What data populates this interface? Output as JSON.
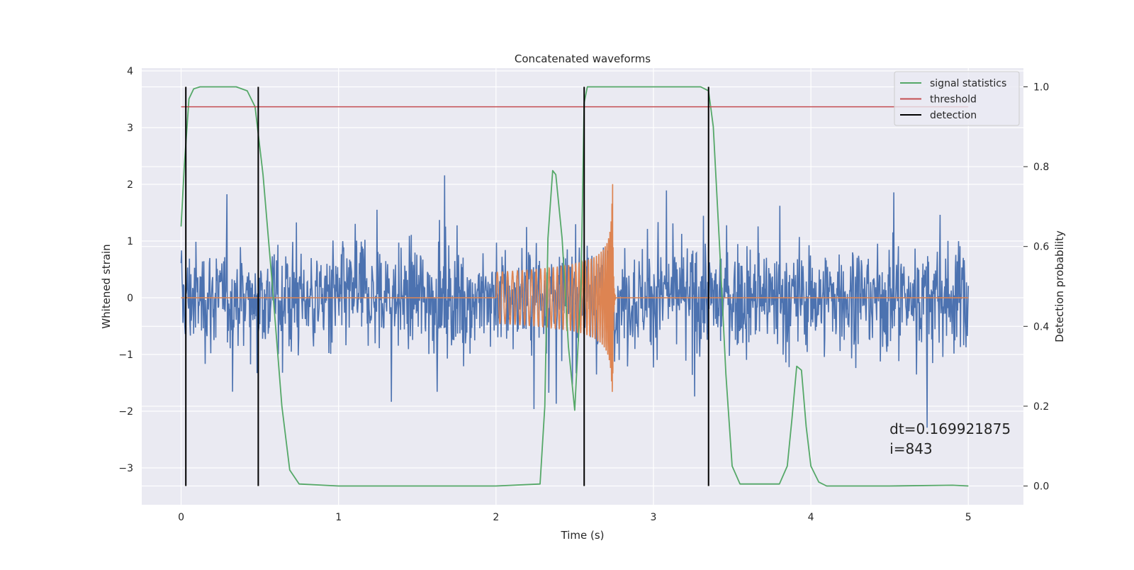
{
  "chart_data": {
    "type": "line",
    "title": "Concatenated waveforms",
    "xlabel": "Time (s)",
    "ylabel": "Whitened strain",
    "y2label": "Detection probability",
    "xlim": [
      -0.25,
      5.35
    ],
    "ylim": [
      -3.65,
      4.05
    ],
    "y2lim": [
      -0.047,
      1.047
    ],
    "xticks": [
      0,
      1,
      2,
      3,
      4,
      5
    ],
    "xtick_labels": [
      "0",
      "1",
      "2",
      "3",
      "4",
      "5"
    ],
    "yticks": [
      -3,
      -2,
      -1,
      0,
      1,
      2,
      3,
      4
    ],
    "ytick_labels": [
      "−3",
      "−2",
      "−1",
      "0",
      "1",
      "2",
      "3",
      "4"
    ],
    "y2ticks": [
      0.0,
      0.2,
      0.4,
      0.6,
      0.8,
      1.0
    ],
    "y2tick_labels": [
      "0.0",
      "0.2",
      "0.4",
      "0.6",
      "0.8",
      "1.0"
    ],
    "grid": true,
    "legend_position": "top-right",
    "annotation": {
      "lines": [
        "dt=0.169921875",
        " i=843"
      ],
      "x": 4.5,
      "y": -2.4
    },
    "series": [
      {
        "name": "whitened strain",
        "axis": "left",
        "color": "#4c72b0",
        "kind": "noise",
        "x_range": [
          0,
          5
        ],
        "sample_count": 1700,
        "typical_amplitude": 0.9,
        "min": -3.3,
        "max": 3.7
      },
      {
        "name": "injected waveform",
        "axis": "left",
        "color": "#dd8452",
        "kind": "chirp",
        "x_range": [
          0,
          5
        ],
        "chirp_start": 2.0,
        "merger_time": 2.74,
        "ringdown_end": 2.76,
        "start_amplitude": 0.45,
        "peak_amplitude": 2.4,
        "min_amplitude": -2.0
      },
      {
        "name": "signal statistics",
        "axis": "right",
        "color": "#55a868",
        "x": [
          0,
          0.02,
          0.05,
          0.08,
          0.12,
          0.2,
          0.35,
          0.42,
          0.47,
          0.52,
          0.58,
          0.64,
          0.69,
          0.75,
          1.0,
          2.0,
          2.28,
          2.31,
          2.33,
          2.36,
          2.38,
          2.42,
          2.46,
          2.5,
          2.54,
          2.56,
          2.58,
          2.6,
          2.65,
          3.0,
          3.3,
          3.35,
          3.38,
          3.42,
          3.46,
          3.5,
          3.55,
          3.8,
          3.85,
          3.88,
          3.91,
          3.94,
          3.97,
          4.0,
          4.05,
          4.1,
          4.5,
          4.9,
          5.0
        ],
        "y": [
          0.65,
          0.8,
          0.97,
          0.995,
          1.0,
          1.0,
          1.0,
          0.99,
          0.95,
          0.78,
          0.5,
          0.2,
          0.04,
          0.005,
          0.0,
          0.0,
          0.005,
          0.2,
          0.62,
          0.79,
          0.78,
          0.62,
          0.35,
          0.19,
          0.5,
          0.96,
          1.0,
          1.0,
          1.0,
          1.0,
          1.0,
          0.99,
          0.9,
          0.6,
          0.28,
          0.05,
          0.005,
          0.005,
          0.05,
          0.17,
          0.3,
          0.29,
          0.15,
          0.05,
          0.01,
          0.0,
          0.0,
          0.002,
          0.0
        ]
      },
      {
        "name": "threshold",
        "axis": "right",
        "color": "#c44e52",
        "x": [
          0,
          5
        ],
        "y": [
          0.95,
          0.95
        ]
      },
      {
        "name": "detection",
        "axis": "right",
        "color": "#000000",
        "vlines_x": [
          0.03,
          0.49,
          2.56,
          3.35
        ],
        "y_range": [
          0,
          1
        ]
      }
    ],
    "legend": [
      "signal statistics",
      "threshold",
      "detection"
    ],
    "colors": {
      "axes_background": "#eaeaf2",
      "grid": "#ffffff",
      "text": "#262626"
    }
  }
}
